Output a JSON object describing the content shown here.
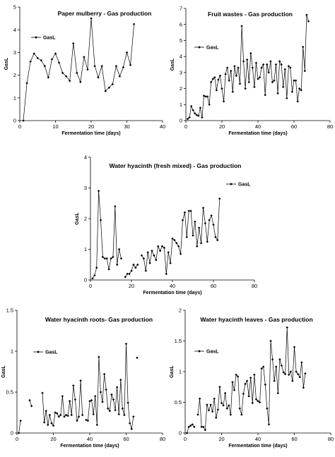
{
  "chart_data": [
    {
      "type": "line",
      "title": "Paper mulberry - Gas production",
      "xlabel": "Fermentation time (days)",
      "ylabel": "GasL",
      "xlim": [
        0,
        40
      ],
      "ylim": [
        0,
        5
      ],
      "xticks": [
        0,
        10,
        20,
        30,
        40
      ],
      "yticks": [
        0,
        1,
        2,
        3,
        4,
        5
      ],
      "legend": "top-left",
      "series": [
        {
          "name": "GasL",
          "x": [
            1,
            2,
            3,
            4,
            5,
            6,
            7,
            8,
            9,
            10,
            11,
            12,
            13,
            14,
            15,
            16,
            17,
            18,
            19,
            20,
            21,
            22,
            23,
            24,
            25,
            26,
            27,
            28,
            29,
            30,
            31,
            32
          ],
          "y": [
            0,
            1.65,
            2.6,
            2.95,
            2.75,
            2.65,
            2.4,
            1.9,
            2.7,
            2.95,
            2.55,
            2.1,
            1.95,
            1.75,
            3.4,
            2.1,
            1.7,
            2.8,
            2.25,
            4.5,
            2.4,
            1.9,
            2.4,
            1.3,
            1.45,
            1.6,
            2.4,
            1.95,
            2.35,
            3.0,
            2.45,
            4.25
          ]
        }
      ]
    },
    {
      "type": "line",
      "title": "Fruit wastes - Gas production",
      "xlabel": "Fermentation time (days)",
      "ylabel": "GasL",
      "xlim": [
        0,
        80
      ],
      "ylim": [
        0,
        7
      ],
      "xticks": [
        0,
        20,
        40,
        60,
        80
      ],
      "yticks": [
        0,
        1,
        2,
        3,
        4,
        5,
        6,
        7
      ],
      "legend": "top-left",
      "series": [
        {
          "name": "GasL",
          "x": [
            1,
            2,
            3,
            4,
            5,
            6,
            7,
            8,
            9,
            10,
            11,
            12,
            13,
            14,
            15,
            16,
            17,
            18,
            19,
            20,
            21,
            22,
            23,
            24,
            25,
            26,
            27,
            28,
            29,
            30,
            31,
            32,
            33,
            34,
            35,
            36,
            37,
            38,
            39,
            40,
            41,
            42,
            43,
            44,
            45,
            46,
            47,
            48,
            49,
            50,
            51,
            52,
            53,
            54,
            55,
            56,
            57,
            58,
            59,
            60,
            61,
            62,
            63,
            64,
            65,
            66,
            67,
            68
          ],
          "y": [
            0.1,
            0.2,
            0.9,
            0.65,
            0.45,
            0.35,
            0.3,
            0.8,
            0.2,
            1.55,
            1.5,
            1.5,
            1.0,
            2.4,
            2.6,
            2.7,
            1.9,
            2.55,
            2.8,
            2.0,
            1.2,
            2.9,
            3.3,
            2.5,
            3.1,
            1.8,
            3.4,
            2.8,
            3.3,
            2.3,
            5.9,
            3.7,
            2.0,
            3.8,
            2.4,
            4.2,
            3.3,
            2.1,
            3.6,
            2.6,
            2.7,
            3.3,
            3.5,
            1.6,
            3.5,
            3.0,
            3.7,
            2.4,
            2.5,
            3.5,
            1.7,
            3.7,
            3.5,
            2.1,
            3.2,
            1.4,
            3.4,
            3.3,
            1.8,
            2.5,
            2.5,
            1.2,
            2.0,
            1.9,
            4.6,
            3.1,
            6.6,
            6.2
          ]
        }
      ]
    },
    {
      "type": "line",
      "title": "Water hyacinth (fresh mixed) - Gas production",
      "xlabel": "Fermentation time (days)",
      "ylabel": "GasL",
      "xlim": [
        0,
        80
      ],
      "ylim": [
        0,
        4
      ],
      "xticks": [
        0,
        20,
        40,
        60,
        80
      ],
      "yticks": [
        0,
        1,
        2,
        3,
        4
      ],
      "legend": "top-right",
      "series": [
        {
          "name": "GasL",
          "x": [
            1,
            2,
            3,
            4,
            5,
            6,
            7,
            8,
            9,
            10,
            11,
            12,
            13,
            14,
            15,
            16,
            17,
            18,
            19,
            20,
            21,
            22,
            23,
            24,
            25,
            26,
            27,
            28,
            29,
            30,
            31,
            32,
            33,
            34,
            35,
            36,
            37,
            38,
            39,
            40,
            41,
            42,
            43,
            44,
            45,
            46,
            47,
            48,
            49,
            50,
            51,
            52,
            53,
            54,
            55,
            56,
            57,
            58,
            59,
            60,
            61,
            62,
            63
          ],
          "y": [
            0.05,
            0.15,
            0.4,
            2.9,
            1.95,
            0.75,
            0.7,
            0.7,
            0.35,
            0.7,
            0.75,
            2.4,
            0.5,
            1.0,
            0.7,
            null,
            0.1,
            0.2,
            0.2,
            0.3,
            0.5,
            0.4,
            0.5,
            null,
            0.8,
            0.7,
            0.3,
            0.9,
            0.55,
            0.95,
            0.8,
            0.65,
            1.1,
            0.95,
            1.1,
            1.05,
            0.2,
            0.9,
            0.55,
            1.35,
            1.3,
            1.2,
            1.1,
            0.85,
            1.95,
            2.2,
            1.4,
            2.25,
            2.25,
            1.45,
            1.9,
            1.1,
            1.7,
            1.2,
            2.35,
            1.85,
            1.25,
            1.95,
            2.1,
            1.8,
            1.4,
            1.3,
            2.65
          ]
        }
      ]
    },
    {
      "type": "line",
      "title": "Water hyacinth roots- Gas production",
      "xlabel": "Fermentation time (days)",
      "ylabel": "GasL",
      "xlim": [
        0,
        80
      ],
      "ylim": [
        0,
        1.5
      ],
      "xticks": [
        0,
        20,
        40,
        60,
        80
      ],
      "yticks": [
        0,
        0.5,
        1,
        1.5
      ],
      "legend": "top-left",
      "series": [
        {
          "name": "GasL",
          "x": [
            1,
            2,
            3,
            4,
            5,
            6,
            7,
            8,
            9,
            10,
            11,
            12,
            13,
            14,
            15,
            16,
            17,
            18,
            19,
            20,
            21,
            22,
            23,
            24,
            25,
            26,
            27,
            28,
            29,
            30,
            31,
            32,
            33,
            34,
            35,
            36,
            37,
            38,
            39,
            40,
            41,
            42,
            43,
            44,
            45,
            46,
            47,
            48,
            49,
            50,
            51,
            52,
            53,
            54,
            55,
            56,
            57,
            58,
            59,
            60,
            61,
            62,
            63,
            64,
            65,
            66
          ],
          "y": [
            0.0,
            0.15,
            null,
            null,
            null,
            null,
            0.4,
            0.33,
            null,
            null,
            null,
            null,
            null,
            0.49,
            0.13,
            0.27,
            0.1,
            0.22,
            0.12,
            0.09,
            0.25,
            0.24,
            0.2,
            0.22,
            0.45,
            0.2,
            0.22,
            0.21,
            0.39,
            0.22,
            0.58,
            0.41,
            0.15,
            0.2,
            0.64,
            0.22,
            null,
            0.16,
            0.15,
            0.39,
            0.4,
            0.23,
            0.45,
            0.1,
            0.93,
            0.5,
            0.38,
            0.72,
            0.53,
            0.3,
            0.27,
            0.47,
            0.41,
            0.28,
            0.56,
            0.23,
            0.65,
            0.3,
            0.22,
            1.09,
            0.37,
            0.12,
            0.05,
            0.2,
            null,
            0.92
          ]
        }
      ]
    },
    {
      "type": "line",
      "title": "Water hyacinth leaves - Gas production",
      "xlabel": "Fermentation time (days)",
      "ylabel": "GasL",
      "xlim": [
        0,
        80
      ],
      "ylim": [
        0,
        2
      ],
      "xticks": [
        0,
        20,
        40,
        60,
        80
      ],
      "yticks": [
        0,
        0.5,
        1,
        1.5,
        2
      ],
      "legend": "top-left",
      "series": [
        {
          "name": "GasL",
          "x": [
            1,
            2,
            3,
            4,
            5,
            6,
            7,
            8,
            9,
            10,
            11,
            12,
            13,
            14,
            15,
            16,
            17,
            18,
            19,
            20,
            21,
            22,
            23,
            24,
            25,
            26,
            27,
            28,
            29,
            30,
            31,
            32,
            33,
            34,
            35,
            36,
            37,
            38,
            39,
            40,
            41,
            42,
            43,
            44,
            45,
            46,
            47,
            48,
            49,
            50,
            51,
            52,
            53,
            54,
            55,
            56,
            57,
            58,
            59,
            60,
            61,
            62,
            63,
            64,
            65,
            66
          ],
          "y": [
            0.0,
            0.1,
            0.12,
            0.14,
            0.1,
            null,
            0.3,
            0.56,
            0.1,
            0.1,
            0.05,
            0.46,
            0.37,
            0.46,
            0.35,
            0.56,
            0.25,
            0.38,
            0.75,
            0.49,
            0.45,
            0.65,
            0.4,
            0.45,
            0.3,
            0.83,
            0.7,
            0.95,
            0.92,
            0.4,
            0.3,
            0.64,
            0.8,
            0.85,
            0.6,
            0.9,
            0.49,
            0.95,
            0.55,
            0.52,
            0.5,
            1.05,
            1.08,
            0.79,
            0.4,
            0.14,
            1.5,
            1.2,
            0.85,
            1.08,
            0.65,
            1.2,
            1.1,
            0.99,
            0.96,
            1.72,
            0.95,
            1.0,
            0.85,
            1.4,
            1.0,
            0.96,
            0.91,
            1.15,
            0.74,
            0.97
          ]
        }
      ]
    }
  ]
}
